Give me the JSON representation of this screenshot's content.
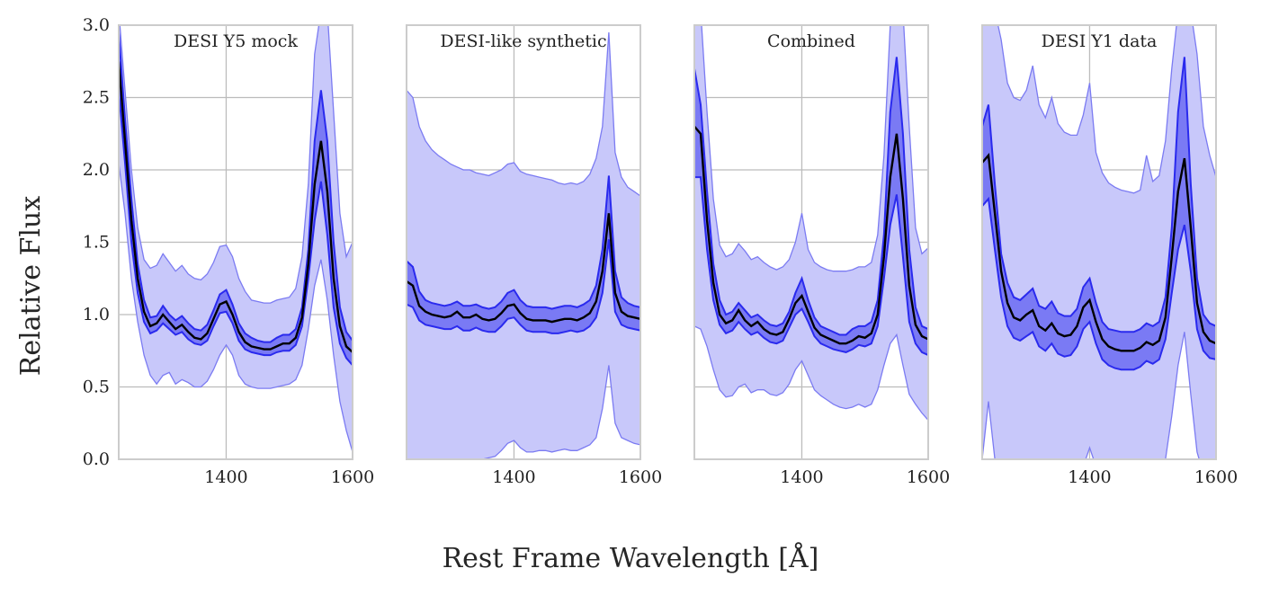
{
  "colors": {
    "outer_band": "#c8c8fa",
    "outer_edge": "#7b7bf2",
    "inner_band": "#7a7af4",
    "inner_edge": "#2a2aee",
    "median": "#000000",
    "grid": "#bcbcbc",
    "frame": "#cccccc"
  },
  "chart_data": {
    "type": "line",
    "description_keys": "Each panel: 'outer' band (lo/hi), 'inner' band (lo/hi) and 'median' line; values are relative flux sampled at x.",
    "xlabel": "Rest Frame Wavelength [Å]",
    "ylabel": "Relative Flux",
    "xlim": [
      1230,
      1600
    ],
    "ylim": [
      0.0,
      3.0
    ],
    "xticks": [
      "1400",
      "1600"
    ],
    "yticks": [
      "0.0",
      "0.5",
      "1.0",
      "1.5",
      "2.0",
      "2.5",
      "3.0"
    ],
    "x": [
      1230,
      1240,
      1250,
      1260,
      1270,
      1280,
      1290,
      1300,
      1310,
      1320,
      1330,
      1340,
      1350,
      1360,
      1370,
      1380,
      1390,
      1400,
      1410,
      1420,
      1430,
      1440,
      1450,
      1460,
      1470,
      1480,
      1490,
      1500,
      1510,
      1520,
      1530,
      1540,
      1550,
      1560,
      1570,
      1580,
      1590,
      1600
    ],
    "panels": [
      {
        "title": "DESI Y5 mock",
        "outer_hi": [
          3.1,
          2.55,
          2.0,
          1.6,
          1.38,
          1.32,
          1.34,
          1.42,
          1.36,
          1.3,
          1.34,
          1.28,
          1.25,
          1.24,
          1.28,
          1.36,
          1.47,
          1.48,
          1.4,
          1.25,
          1.16,
          1.1,
          1.09,
          1.08,
          1.08,
          1.1,
          1.11,
          1.12,
          1.18,
          1.4,
          1.9,
          2.8,
          3.1,
          3.1,
          2.4,
          1.7,
          1.4,
          1.5
        ],
        "inner_hi": [
          2.95,
          2.35,
          1.8,
          1.35,
          1.1,
          0.98,
          0.99,
          1.06,
          1.0,
          0.96,
          0.99,
          0.94,
          0.9,
          0.89,
          0.93,
          1.03,
          1.14,
          1.17,
          1.07,
          0.94,
          0.87,
          0.84,
          0.82,
          0.81,
          0.81,
          0.84,
          0.86,
          0.86,
          0.9,
          1.05,
          1.45,
          2.2,
          2.55,
          2.2,
          1.5,
          1.05,
          0.88,
          0.82
        ],
        "median": [
          2.75,
          2.2,
          1.65,
          1.25,
          1.02,
          0.92,
          0.94,
          1.0,
          0.95,
          0.9,
          0.93,
          0.88,
          0.84,
          0.83,
          0.87,
          0.97,
          1.07,
          1.09,
          1.0,
          0.88,
          0.81,
          0.78,
          0.77,
          0.76,
          0.76,
          0.78,
          0.8,
          0.8,
          0.84,
          0.98,
          1.35,
          1.9,
          2.2,
          1.85,
          1.25,
          0.92,
          0.78,
          0.74
        ],
        "inner_lo": [
          2.55,
          2.05,
          1.5,
          1.15,
          0.95,
          0.87,
          0.89,
          0.94,
          0.9,
          0.86,
          0.88,
          0.83,
          0.8,
          0.79,
          0.82,
          0.92,
          1.01,
          1.02,
          0.94,
          0.82,
          0.76,
          0.74,
          0.73,
          0.72,
          0.72,
          0.74,
          0.75,
          0.75,
          0.79,
          0.92,
          1.25,
          1.65,
          1.92,
          1.55,
          1.05,
          0.8,
          0.7,
          0.65
        ],
        "outer_lo": [
          2.05,
          1.7,
          1.25,
          0.95,
          0.72,
          0.58,
          0.52,
          0.58,
          0.6,
          0.52,
          0.55,
          0.53,
          0.5,
          0.5,
          0.54,
          0.62,
          0.72,
          0.79,
          0.72,
          0.58,
          0.52,
          0.5,
          0.49,
          0.49,
          0.49,
          0.5,
          0.51,
          0.52,
          0.55,
          0.65,
          0.9,
          1.2,
          1.38,
          1.1,
          0.72,
          0.4,
          0.2,
          0.05
        ]
      },
      {
        "title": "DESI-like synthetic",
        "outer_hi": [
          2.55,
          2.5,
          2.3,
          2.2,
          2.14,
          2.1,
          2.07,
          2.04,
          2.02,
          2.0,
          2.0,
          1.98,
          1.97,
          1.96,
          1.98,
          2.0,
          2.04,
          2.05,
          1.99,
          1.97,
          1.96,
          1.95,
          1.94,
          1.93,
          1.91,
          1.9,
          1.91,
          1.9,
          1.92,
          1.97,
          2.08,
          2.3,
          2.95,
          2.12,
          1.95,
          1.88,
          1.85,
          1.82
        ],
        "inner_hi": [
          1.37,
          1.33,
          1.16,
          1.1,
          1.08,
          1.07,
          1.06,
          1.07,
          1.09,
          1.06,
          1.06,
          1.07,
          1.05,
          1.04,
          1.05,
          1.09,
          1.15,
          1.17,
          1.1,
          1.06,
          1.05,
          1.05,
          1.05,
          1.04,
          1.05,
          1.06,
          1.06,
          1.05,
          1.07,
          1.1,
          1.2,
          1.45,
          1.96,
          1.3,
          1.12,
          1.08,
          1.06,
          1.05
        ],
        "median": [
          1.23,
          1.2,
          1.06,
          1.02,
          1.0,
          0.99,
          0.98,
          0.99,
          1.02,
          0.98,
          0.98,
          1.0,
          0.97,
          0.96,
          0.97,
          1.01,
          1.06,
          1.07,
          1.01,
          0.97,
          0.96,
          0.96,
          0.96,
          0.95,
          0.96,
          0.97,
          0.97,
          0.96,
          0.98,
          1.01,
          1.09,
          1.3,
          1.7,
          1.15,
          1.02,
          0.99,
          0.98,
          0.97
        ],
        "inner_lo": [
          1.07,
          1.05,
          0.96,
          0.93,
          0.92,
          0.91,
          0.9,
          0.9,
          0.92,
          0.89,
          0.89,
          0.91,
          0.89,
          0.88,
          0.88,
          0.92,
          0.97,
          0.98,
          0.93,
          0.89,
          0.88,
          0.88,
          0.88,
          0.87,
          0.87,
          0.88,
          0.89,
          0.88,
          0.89,
          0.92,
          0.98,
          1.15,
          1.52,
          1.02,
          0.93,
          0.91,
          0.9,
          0.89
        ],
        "outer_lo": [
          -0.2,
          -0.2,
          -0.2,
          -0.2,
          -0.2,
          -0.2,
          -0.15,
          -0.08,
          -0.03,
          -0.02,
          -0.02,
          0.0,
          0.0,
          0.01,
          0.02,
          0.06,
          0.11,
          0.13,
          0.08,
          0.05,
          0.05,
          0.06,
          0.06,
          0.05,
          0.06,
          0.07,
          0.06,
          0.06,
          0.08,
          0.1,
          0.15,
          0.35,
          0.65,
          0.25,
          0.15,
          0.13,
          0.11,
          0.1
        ]
      },
      {
        "title": "Combined",
        "outer_hi": [
          3.1,
          3.1,
          2.4,
          1.8,
          1.48,
          1.4,
          1.42,
          1.49,
          1.44,
          1.38,
          1.4,
          1.36,
          1.33,
          1.31,
          1.33,
          1.38,
          1.5,
          1.7,
          1.45,
          1.36,
          1.33,
          1.31,
          1.3,
          1.3,
          1.3,
          1.31,
          1.33,
          1.33,
          1.36,
          1.55,
          2.1,
          3.0,
          3.1,
          3.1,
          2.3,
          1.6,
          1.42,
          1.46
        ],
        "inner_hi": [
          2.7,
          2.45,
          1.85,
          1.35,
          1.1,
          1.0,
          1.02,
          1.08,
          1.03,
          0.98,
          1.0,
          0.96,
          0.93,
          0.92,
          0.94,
          1.02,
          1.15,
          1.25,
          1.1,
          0.98,
          0.92,
          0.9,
          0.88,
          0.86,
          0.86,
          0.9,
          0.92,
          0.92,
          0.95,
          1.1,
          1.55,
          2.4,
          2.78,
          2.25,
          1.45,
          1.05,
          0.92,
          0.9
        ],
        "median": [
          2.3,
          2.25,
          1.65,
          1.22,
          1.0,
          0.94,
          0.96,
          1.03,
          0.96,
          0.92,
          0.95,
          0.9,
          0.87,
          0.86,
          0.88,
          0.97,
          1.08,
          1.13,
          1.02,
          0.91,
          0.86,
          0.84,
          0.82,
          0.8,
          0.8,
          0.82,
          0.85,
          0.84,
          0.87,
          1.0,
          1.4,
          1.95,
          2.25,
          1.8,
          1.2,
          0.93,
          0.85,
          0.83
        ],
        "inner_lo": [
          1.95,
          1.95,
          1.45,
          1.1,
          0.93,
          0.87,
          0.89,
          0.95,
          0.9,
          0.86,
          0.88,
          0.84,
          0.81,
          0.8,
          0.82,
          0.91,
          1.0,
          1.04,
          0.95,
          0.85,
          0.8,
          0.78,
          0.76,
          0.75,
          0.74,
          0.76,
          0.79,
          0.78,
          0.8,
          0.92,
          1.25,
          1.62,
          1.83,
          1.4,
          0.95,
          0.8,
          0.74,
          0.72
        ],
        "outer_lo": [
          0.92,
          0.9,
          0.78,
          0.62,
          0.48,
          0.43,
          0.44,
          0.5,
          0.52,
          0.46,
          0.48,
          0.48,
          0.45,
          0.44,
          0.46,
          0.52,
          0.62,
          0.68,
          0.58,
          0.48,
          0.44,
          0.41,
          0.38,
          0.36,
          0.35,
          0.36,
          0.38,
          0.36,
          0.38,
          0.48,
          0.65,
          0.8,
          0.86,
          0.65,
          0.45,
          0.38,
          0.32,
          0.27
        ]
      },
      {
        "title": "DESI Y1 data",
        "outer_hi": [
          3.1,
          3.1,
          3.1,
          2.9,
          2.6,
          2.5,
          2.48,
          2.55,
          2.72,
          2.45,
          2.36,
          2.5,
          2.32,
          2.26,
          2.24,
          2.24,
          2.38,
          2.6,
          2.12,
          1.98,
          1.91,
          1.88,
          1.86,
          1.85,
          1.84,
          1.86,
          2.1,
          1.92,
          1.96,
          2.2,
          2.7,
          3.1,
          3.1,
          3.1,
          2.8,
          2.3,
          2.1,
          1.95
        ],
        "inner_hi": [
          2.3,
          2.45,
          1.9,
          1.42,
          1.22,
          1.12,
          1.1,
          1.14,
          1.18,
          1.06,
          1.04,
          1.09,
          1.01,
          0.99,
          0.99,
          1.04,
          1.19,
          1.25,
          1.08,
          0.95,
          0.9,
          0.89,
          0.88,
          0.88,
          0.88,
          0.9,
          0.94,
          0.92,
          0.95,
          1.12,
          1.6,
          2.4,
          2.78,
          1.9,
          1.25,
          1.0,
          0.94,
          0.92
        ],
        "median": [
          2.05,
          2.1,
          1.7,
          1.3,
          1.08,
          0.98,
          0.96,
          1.0,
          1.03,
          0.92,
          0.89,
          0.94,
          0.87,
          0.85,
          0.86,
          0.92,
          1.05,
          1.1,
          0.95,
          0.83,
          0.78,
          0.76,
          0.75,
          0.75,
          0.75,
          0.77,
          0.81,
          0.79,
          0.82,
          0.98,
          1.4,
          1.85,
          2.08,
          1.6,
          1.08,
          0.88,
          0.82,
          0.8
        ],
        "inner_lo": [
          1.75,
          1.8,
          1.45,
          1.12,
          0.92,
          0.84,
          0.82,
          0.85,
          0.88,
          0.78,
          0.75,
          0.8,
          0.73,
          0.71,
          0.72,
          0.78,
          0.9,
          0.95,
          0.8,
          0.69,
          0.65,
          0.63,
          0.62,
          0.62,
          0.62,
          0.64,
          0.68,
          0.66,
          0.69,
          0.83,
          1.15,
          1.45,
          1.62,
          1.3,
          0.9,
          0.75,
          0.7,
          0.69
        ],
        "outer_lo": [
          0.0,
          0.4,
          0.0,
          -0.1,
          -0.1,
          -0.1,
          -0.1,
          -0.1,
          -0.1,
          -0.1,
          -0.1,
          -0.1,
          -0.1,
          -0.1,
          -0.1,
          -0.1,
          -0.05,
          0.08,
          -0.05,
          -0.1,
          -0.1,
          -0.1,
          -0.1,
          -0.1,
          -0.1,
          -0.1,
          -0.1,
          -0.1,
          -0.1,
          0.0,
          0.3,
          0.65,
          0.88,
          0.45,
          0.05,
          -0.1,
          -0.1,
          -0.1
        ]
      }
    ]
  }
}
